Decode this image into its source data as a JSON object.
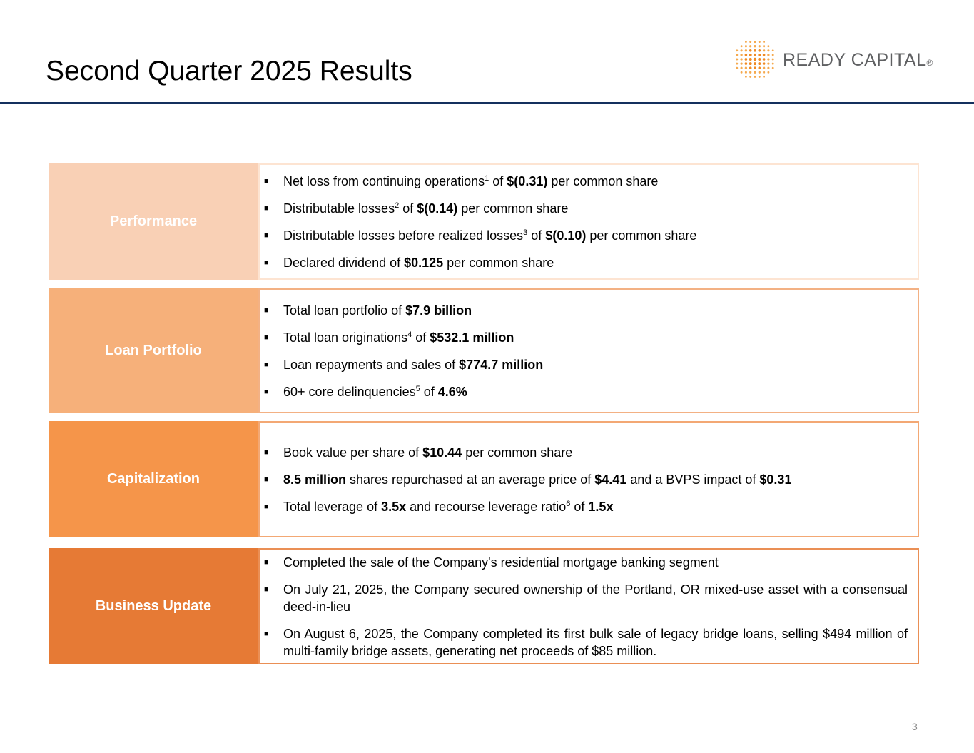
{
  "header": {
    "title": "Second Quarter 2025 Results",
    "logo": "READY CAPITAL",
    "logo_mark": "®"
  },
  "sections": [
    {
      "label": "Performance",
      "bullets": [
        [
          "Net loss from continuing operations",
          {
            "sup": "1"
          },
          " of ",
          {
            "b": "$(0.31)"
          },
          " per common share"
        ],
        [
          "Distributable losses",
          {
            "sup": "2"
          },
          " of ",
          {
            "b": "$(0.14)"
          },
          " per common share"
        ],
        [
          "Distributable losses before realized losses",
          {
            "sup": "3"
          },
          " of ",
          {
            "b": "$(0.10)"
          },
          " per common share"
        ],
        [
          "Declared dividend of ",
          {
            "b": "$0.125"
          },
          " per common share"
        ]
      ]
    },
    {
      "label": "Loan Portfolio",
      "bullets": [
        [
          "Total loan portfolio of ",
          {
            "b": "$7.9 billion"
          }
        ],
        [
          "Total loan originations",
          {
            "sup": "4"
          },
          " of ",
          {
            "b": "$532.1 million"
          }
        ],
        [
          "Loan repayments and sales of ",
          {
            "b": "$774.7 million"
          }
        ],
        [
          "60+ core delinquencies",
          {
            "sup": "5"
          },
          " of ",
          {
            "b": "4.6%"
          }
        ]
      ]
    },
    {
      "label": "Capitalization",
      "bullets": [
        [
          "Book value per share of ",
          {
            "b": "$10.44"
          },
          " per common share"
        ],
        [
          {
            "b": "8.5 million"
          },
          " shares repurchased at an average price of ",
          {
            "b": "$4.41"
          },
          " and a BVPS impact of ",
          {
            "b": "$0.31"
          }
        ],
        [
          "Total leverage of ",
          {
            "b": "3.5x"
          },
          " and recourse leverage ratio",
          {
            "sup": "6"
          },
          " of ",
          {
            "b": "1.5x"
          }
        ]
      ]
    },
    {
      "label": "Business Update",
      "bullets": [
        [
          "Completed the sale of the Company's residential mortgage banking segment"
        ],
        [
          "On July 21, 2025, the Company secured ownership of the Portland, OR mixed-use asset with a consensual deed-in-lieu"
        ],
        [
          "On August 6, 2025, the Company completed its first bulk sale of legacy bridge loans, selling $494 million of multi-family bridge assets, generating net proceeds of $85 million."
        ]
      ]
    }
  ],
  "footer": {
    "page_number": "3"
  }
}
